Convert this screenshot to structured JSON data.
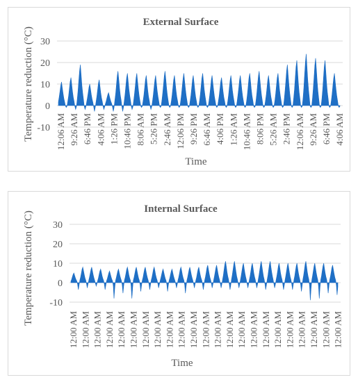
{
  "chart_data": [
    {
      "type": "area",
      "title": "External Surface",
      "xlabel": "Time",
      "ylabel": "Temperature reduction (°C)",
      "ylim": [
        -10,
        30
      ],
      "yticks": [
        -10,
        0,
        10,
        20,
        30
      ],
      "grid": true,
      "color": "#1f6fc5",
      "xticks": [
        "12:06 AM",
        "9:26 AM",
        "6:46 PM",
        "4:06 AM",
        "1:26 PM",
        "10:46 PM",
        "8:06 AM",
        "5:26 PM",
        "2:46 AM",
        "12:06 PM",
        "9:26 PM",
        "6:46 AM",
        "4:06 PM",
        "1:26 AM",
        "10:46 AM",
        "8:06 PM",
        "5:26 AM",
        "2:46 PM",
        "12:06 AM",
        "9:26 AM",
        "6:46 PM",
        "4:06 AM"
      ],
      "daily_peaks": [
        11,
        13,
        19,
        10,
        12,
        6,
        16,
        15,
        15,
        14,
        14,
        16,
        14,
        15,
        14,
        15,
        14,
        13,
        14,
        14,
        15,
        16,
        14,
        15,
        19,
        21,
        24,
        22,
        21,
        15
      ],
      "daily_troughs": [
        -1,
        -2,
        -2,
        -3,
        -2,
        -3,
        -3,
        -2,
        -1,
        -2,
        -1,
        -1,
        -1,
        -1,
        -1,
        -1,
        -1,
        -1,
        -1,
        -1,
        -1,
        -1,
        -1,
        -1,
        -1,
        -1,
        -1,
        -1,
        -1,
        -1
      ]
    },
    {
      "type": "area",
      "title": "Internal Surface",
      "xlabel": "Time",
      "ylabel": "Temperature reduction (°C)",
      "ylim": [
        -10,
        30
      ],
      "yticks": [
        -10,
        0,
        10,
        20,
        30
      ],
      "grid": true,
      "color": "#1f6fc5",
      "xticks": [
        "12:00 AM",
        "12:00 AM",
        "12:00 AM",
        "12:00 AM",
        "12:00 AM",
        "12:00 AM",
        "12:00 AM",
        "12:00 AM",
        "12:00 AM",
        "12:00 AM",
        "12:00 AM",
        "12:00 AM",
        "12:00 AM",
        "12:00 AM",
        "12:00 AM",
        "12:00 AM",
        "12:00 AM",
        "12:00 AM",
        "12:00 AM",
        "12:00 AM",
        "12:00 AM",
        "12:00 AM",
        "12:00 AM"
      ],
      "daily_peaks": [
        5,
        8,
        8,
        7,
        6,
        7,
        8,
        8,
        8,
        8,
        7,
        7,
        8,
        8,
        8,
        9,
        9,
        11,
        11,
        10,
        10,
        11,
        11,
        10,
        10,
        10,
        11,
        10,
        10,
        9
      ],
      "daily_troughs": [
        -4,
        -3,
        -2,
        -4,
        -9,
        -6,
        -9,
        -5,
        -4,
        -3,
        -5,
        -3,
        -6,
        -3,
        -4,
        -3,
        -3,
        -4,
        -3,
        -3,
        -3,
        -4,
        -3,
        -4,
        -4,
        -5,
        -10,
        -9,
        -6,
        -7
      ]
    }
  ]
}
